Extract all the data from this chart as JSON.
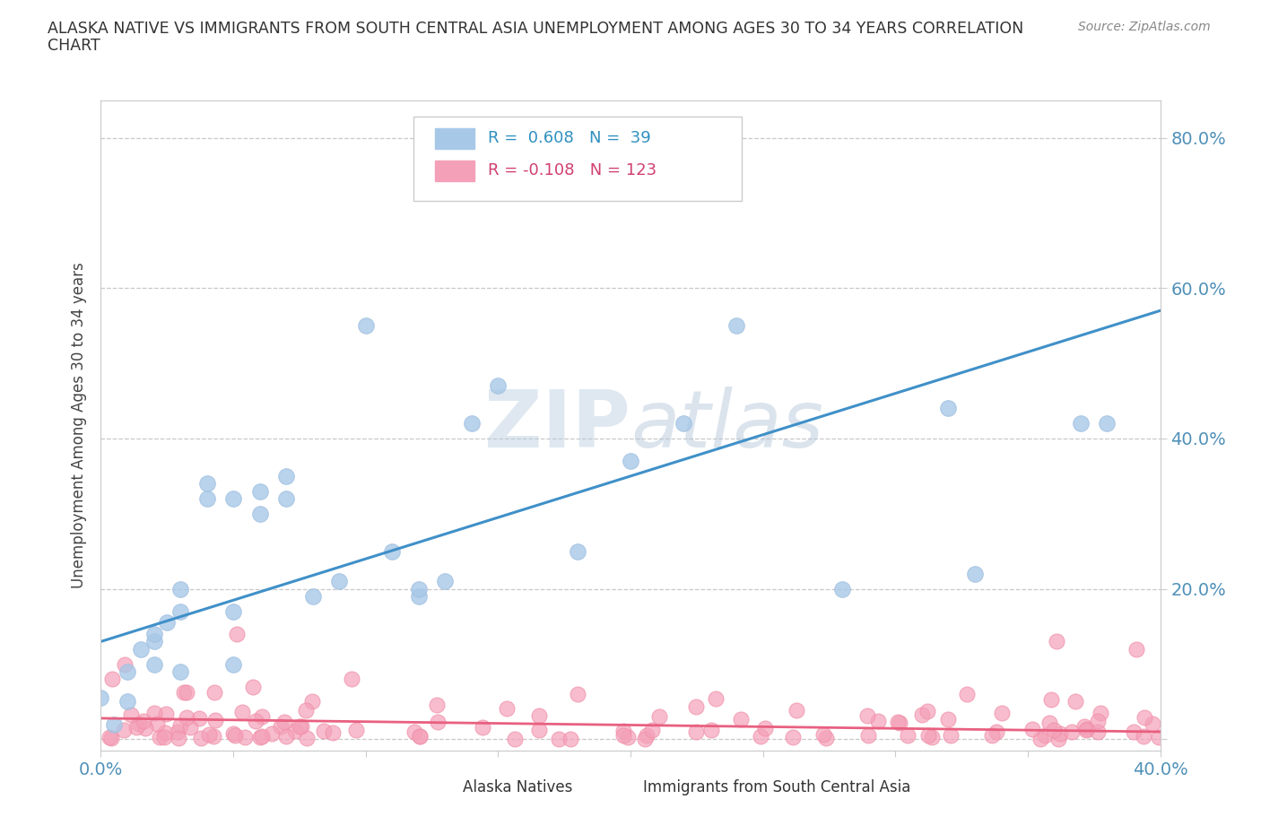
{
  "title_line1": "ALASKA NATIVE VS IMMIGRANTS FROM SOUTH CENTRAL ASIA UNEMPLOYMENT AMONG AGES 30 TO 34 YEARS CORRELATION",
  "title_line2": "CHART",
  "source_text": "Source: ZipAtlas.com",
  "ylabel": "Unemployment Among Ages 30 to 34 years",
  "xlim": [
    0.0,
    0.4
  ],
  "ylim": [
    -0.015,
    0.85
  ],
  "alaska_color": "#A8C8E8",
  "alaska_edge_color": "#A0C0E0",
  "immigrant_color": "#F4A0B8",
  "immigrant_edge_color": "#F090A8",
  "alaska_line_color": "#4090C8",
  "immigrant_line_color": "#E86080",
  "legend_text_blue": "#3090C0",
  "legend_text_pink": "#D04070",
  "legend_text_black": "#303030",
  "watermark_color": "#C8D8E8",
  "background_color": "#FFFFFF",
  "grid_color": "#C8C8C8",
  "tick_label_color": "#5090B8",
  "alaska_x": [
    0.0,
    0.005,
    0.01,
    0.01,
    0.015,
    0.02,
    0.02,
    0.02,
    0.025,
    0.03,
    0.03,
    0.03,
    0.04,
    0.04,
    0.05,
    0.05,
    0.05,
    0.06,
    0.06,
    0.07,
    0.07,
    0.08,
    0.09,
    0.1,
    0.11,
    0.12,
    0.12,
    0.13,
    0.14,
    0.15,
    0.18,
    0.2,
    0.22,
    0.24,
    0.28,
    0.32,
    0.33,
    0.37,
    0.38
  ],
  "alaska_y": [
    0.055,
    0.02,
    0.05,
    0.09,
    0.12,
    0.1,
    0.13,
    0.14,
    0.155,
    0.09,
    0.17,
    0.2,
    0.32,
    0.34,
    0.1,
    0.17,
    0.32,
    0.3,
    0.33,
    0.32,
    0.35,
    0.19,
    0.21,
    0.55,
    0.25,
    0.19,
    0.2,
    0.21,
    0.42,
    0.47,
    0.25,
    0.37,
    0.42,
    0.55,
    0.2,
    0.44,
    0.22,
    0.42,
    0.42
  ],
  "alaska_line_x0": 0.0,
  "alaska_line_y0": 0.13,
  "alaska_line_x1": 0.4,
  "alaska_line_y1": 0.57,
  "immigrant_line_x0": 0.0,
  "immigrant_line_y0": 0.028,
  "immigrant_line_x1": 0.4,
  "immigrant_line_y1": 0.01
}
